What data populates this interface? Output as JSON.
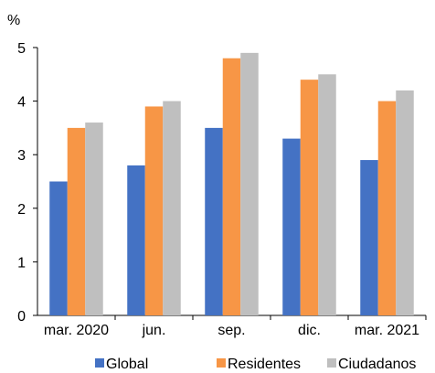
{
  "chart_data": {
    "type": "bar",
    "y_unit": "%",
    "categories": [
      "mar. 2020",
      "jun.",
      "sep.",
      "dic.",
      "mar. 2021"
    ],
    "series": [
      {
        "name": "Global",
        "color": "#4472C4",
        "values": [
          2.5,
          2.8,
          3.5,
          3.3,
          2.9
        ]
      },
      {
        "name": "Residentes",
        "color": "#F79646",
        "values": [
          3.5,
          3.9,
          4.8,
          4.4,
          4.0
        ]
      },
      {
        "name": "Ciudadanos",
        "color": "#BFBFBF",
        "values": [
          3.6,
          4.0,
          4.9,
          4.5,
          4.2
        ]
      }
    ],
    "ylim": [
      0,
      5
    ],
    "yticks": [
      0,
      1,
      2,
      3,
      4,
      5
    ],
    "grid": false,
    "legend_position": "bottom"
  }
}
